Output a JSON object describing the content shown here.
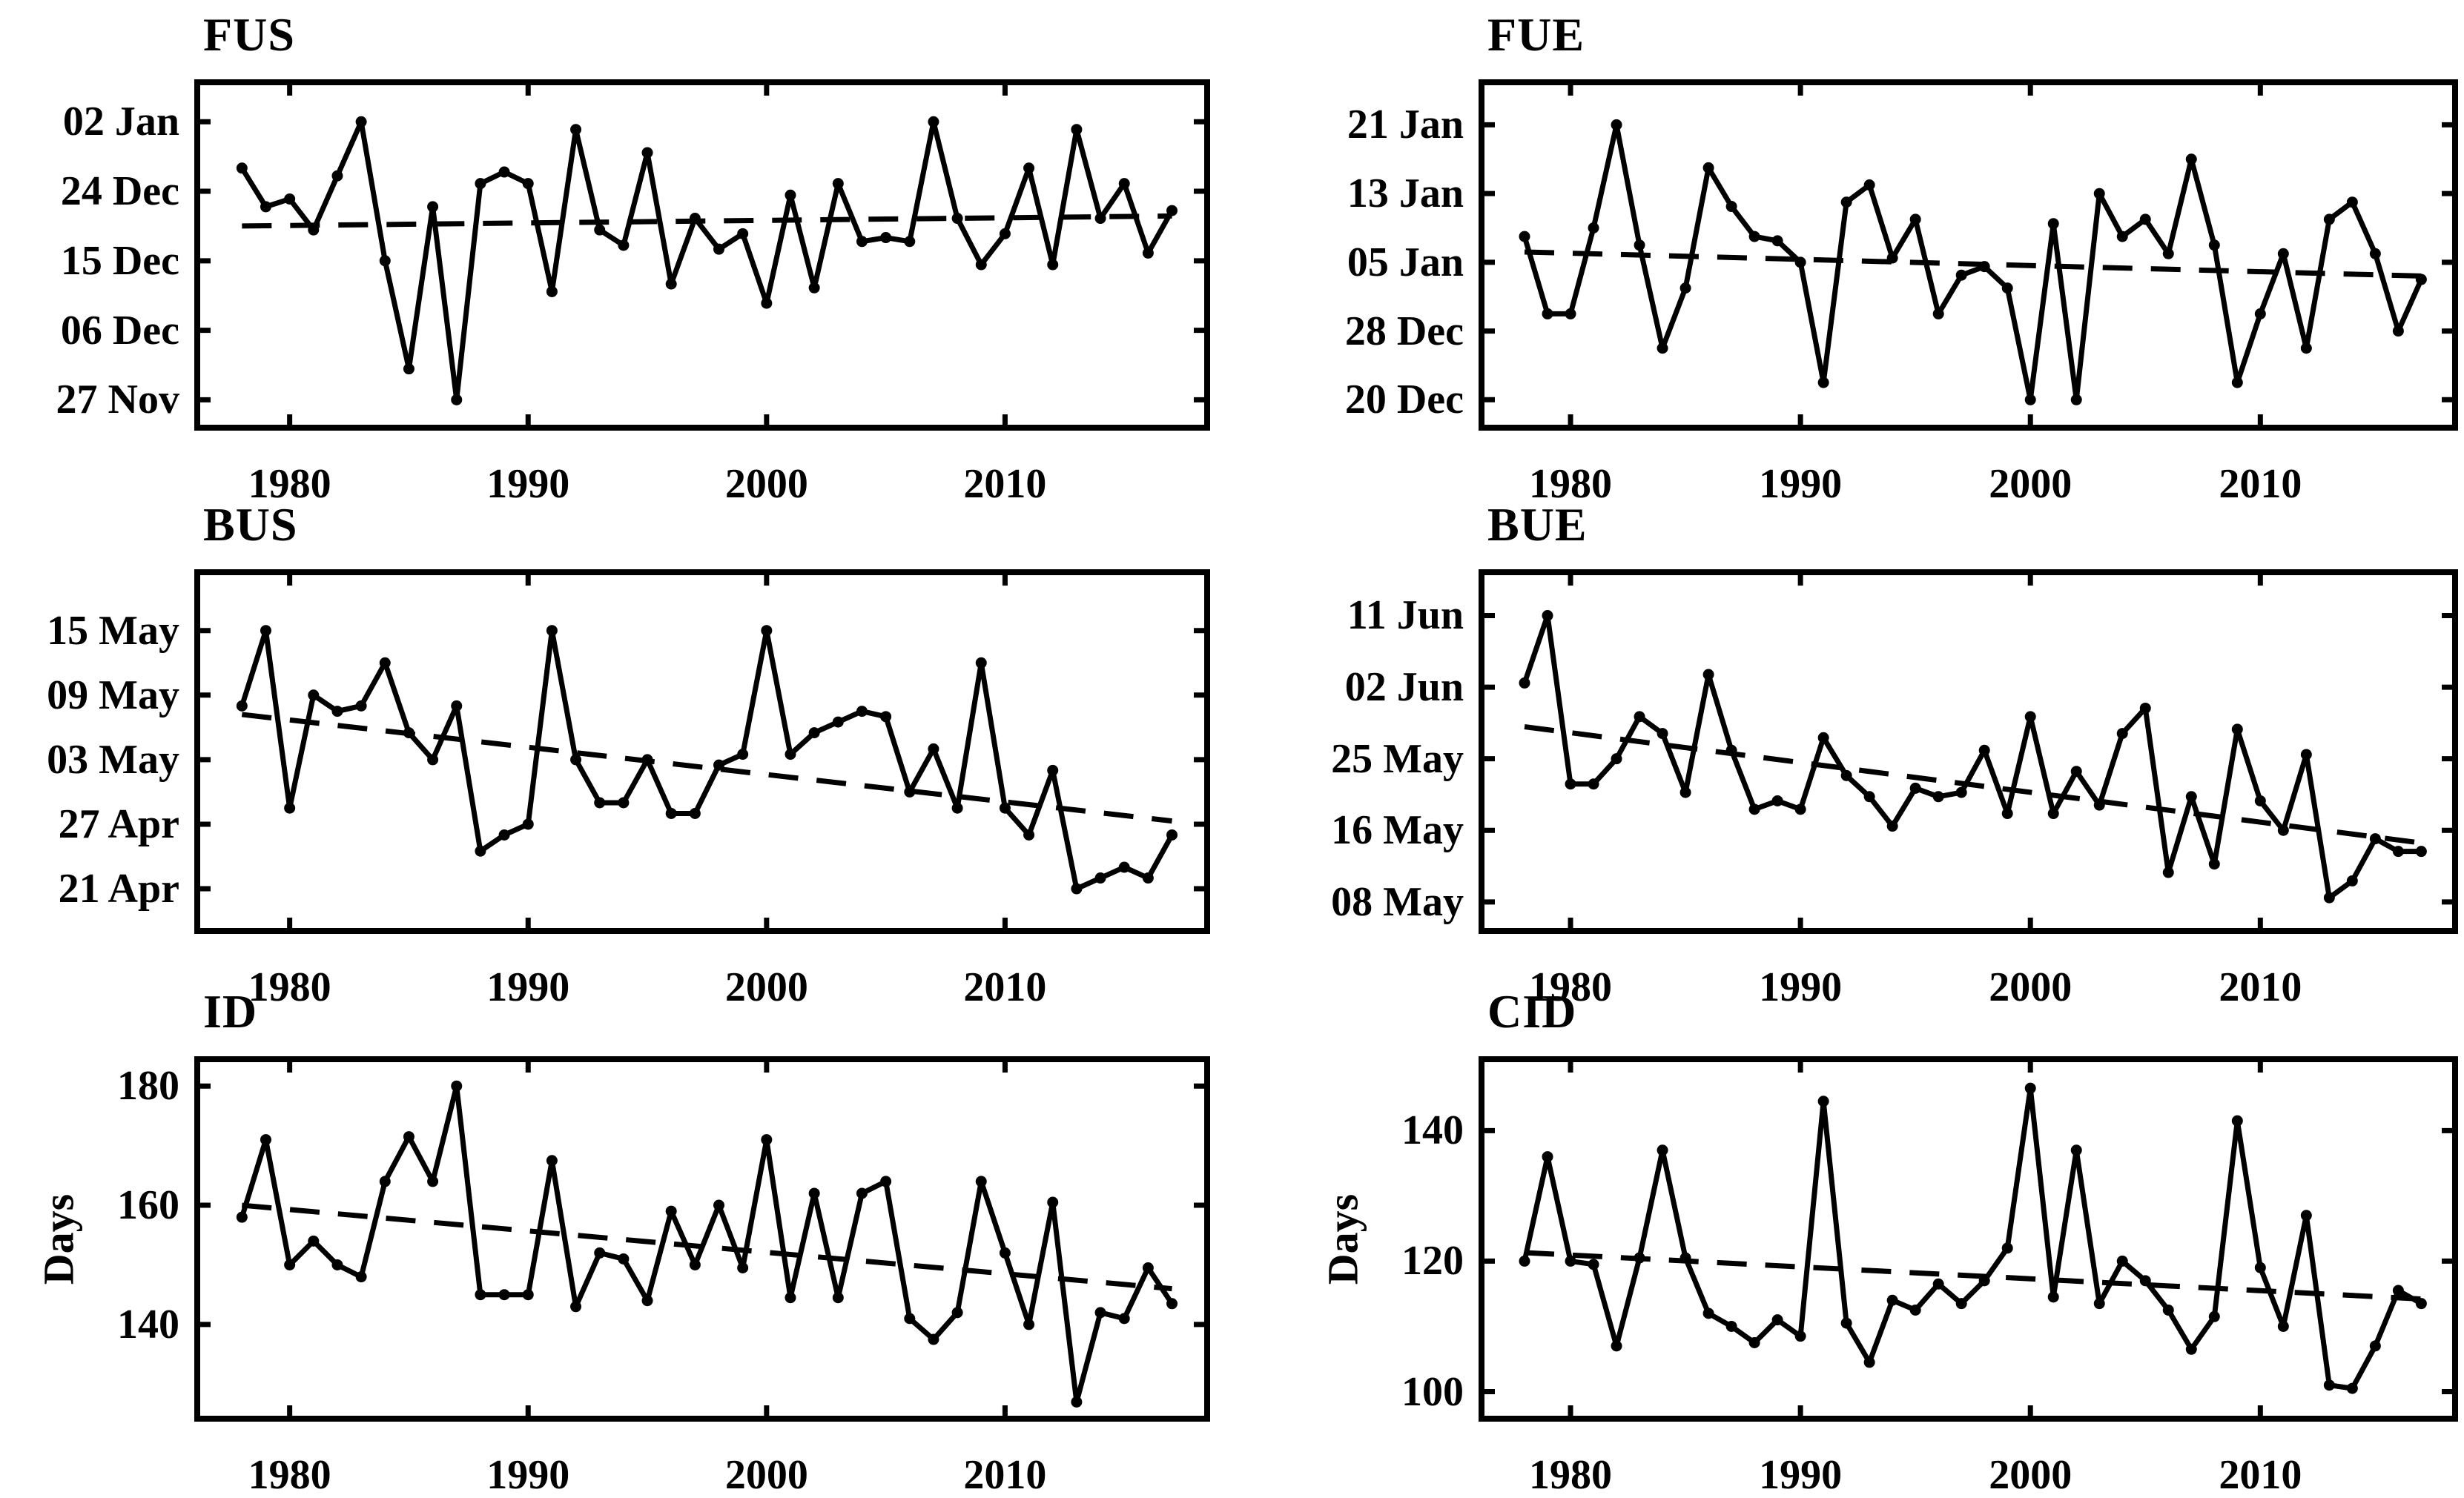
{
  "figure": {
    "background": "#ffffff",
    "line_color": "#000000",
    "years": [
      1978,
      1979,
      1980,
      1981,
      1982,
      1983,
      1984,
      1985,
      1986,
      1987,
      1988,
      1989,
      1990,
      1991,
      1992,
      1993,
      1994,
      1995,
      1996,
      1997,
      1998,
      1999,
      2000,
      2001,
      2002,
      2003,
      2004,
      2005,
      2006,
      2007,
      2008,
      2009,
      2010,
      2011,
      2012,
      2013,
      2014,
      2015,
      2016,
      2017
    ],
    "xticks": [
      1980,
      1990,
      2000,
      2010
    ],
    "xtick_labels": [
      "1980",
      "1990",
      "2000",
      "2010"
    ],
    "xlim": [
      1976,
      2018.6
    ]
  },
  "chart_data": [
    {
      "type": "line",
      "title": "FUS",
      "row": 0,
      "col": 0,
      "ylabel": "",
      "y_unit": "days after 27 Nov (date of year)",
      "ytick_labels": [
        "02 Jan",
        "24 Dec",
        "15 Dec",
        "06 Dec",
        "27 Nov"
      ],
      "ytick_values": [
        36,
        27,
        18,
        9,
        0
      ],
      "ylim": [
        -4.0,
        41.5
      ],
      "grid": false,
      "legend": null,
      "y": [
        30,
        25,
        26,
        22,
        29,
        36,
        18,
        4,
        25,
        0,
        28,
        29.5,
        28,
        14,
        35,
        22,
        20,
        32,
        15,
        23.5,
        19.5,
        21.5,
        12.5,
        26.5,
        14.5,
        28,
        20.5,
        21,
        20.5,
        36,
        23.5,
        17.5,
        21.5,
        30,
        17.5,
        35,
        23.5,
        28,
        19,
        24.5
      ],
      "trend": {
        "x": [
          1978,
          2017
        ],
        "y": [
          22.5,
          23.8
        ],
        "style": "dashed"
      }
    },
    {
      "type": "line",
      "title": "FUE",
      "row": 0,
      "col": 1,
      "ylabel": "",
      "y_unit": "days after 20 Dec (date of year)",
      "ytick_labels": [
        "21 Jan",
        "13 Jan",
        "05 Jan",
        "28 Dec",
        "20 Dec"
      ],
      "ytick_values": [
        32,
        24,
        16,
        8,
        0
      ],
      "ylim": [
        -3.6,
        37.3
      ],
      "grid": false,
      "legend": null,
      "y": [
        19,
        10,
        10,
        20,
        32,
        18,
        6,
        13,
        27,
        22.5,
        19,
        18.5,
        16,
        2,
        23,
        25,
        16.5,
        21,
        10,
        14.5,
        15.5,
        13,
        0,
        20.5,
        0,
        24,
        19,
        21,
        17,
        28,
        18,
        2,
        10,
        17,
        6,
        21,
        23,
        17,
        8,
        14
      ],
      "trend": {
        "x": [
          1978,
          2017
        ],
        "y": [
          17.2,
          14.4
        ],
        "style": "dashed"
      }
    },
    {
      "type": "line",
      "title": "BUS",
      "row": 1,
      "col": 0,
      "ylabel": "",
      "y_unit": "days after 21 Apr (date of year)",
      "ytick_labels": [
        "15 May",
        "09 May",
        "03 May",
        "27 Apr",
        "21 Apr"
      ],
      "ytick_values": [
        24,
        18,
        12,
        6,
        0
      ],
      "ylim": [
        -4.2,
        29.7
      ],
      "grid": false,
      "legend": null,
      "y": [
        17,
        24,
        7.5,
        18,
        16.5,
        17,
        21,
        14.5,
        12,
        17,
        3.5,
        5,
        6,
        24,
        12,
        8,
        8,
        12,
        7,
        7,
        11.5,
        12.5,
        24,
        12.5,
        14.5,
        15.5,
        16.5,
        16,
        9,
        13,
        7.5,
        21,
        7.5,
        5,
        11,
        0,
        1,
        2,
        1,
        5
      ],
      "trend": {
        "x": [
          1978,
          2017
        ],
        "y": [
          16.2,
          6.3
        ],
        "style": "dashed"
      }
    },
    {
      "type": "line",
      "title": "BUE",
      "row": 1,
      "col": 1,
      "ylabel": "",
      "y_unit": "days after 08 May (date of year)",
      "ytick_labels": [
        "11 Jun",
        "02 Jun",
        "25 May",
        "16 May",
        "08 May"
      ],
      "ytick_values": [
        34,
        25.5,
        17,
        8.5,
        0
      ],
      "ylim": [
        -3.8,
        39.5
      ],
      "grid": false,
      "legend": null,
      "y": [
        26,
        34,
        14,
        14,
        17,
        22,
        20,
        13,
        27,
        18,
        11,
        12,
        11,
        19.5,
        15,
        12.5,
        9,
        13.5,
        12.5,
        13,
        18,
        10.5,
        22,
        10.5,
        15.5,
        11.5,
        20,
        23,
        3.5,
        12.5,
        4.5,
        20.5,
        12,
        8.5,
        17.5,
        0.5,
        2.5,
        7.5,
        6,
        6
      ],
      "trend": {
        "x": [
          1978,
          2017
        ],
        "y": [
          20.8,
          7.0
        ],
        "style": "dashed"
      }
    },
    {
      "type": "line",
      "title": "ID",
      "row": 2,
      "col": 0,
      "ylabel": "Days",
      "y_unit": "days",
      "ytick_labels": [
        "180",
        "160",
        "140"
      ],
      "ytick_values": [
        180,
        160,
        140
      ],
      "ylim": [
        123.7,
        185.0
      ],
      "grid": false,
      "legend": null,
      "y": [
        158,
        171,
        150,
        154,
        150,
        148,
        164,
        171.5,
        164,
        180,
        145,
        145,
        145,
        167.5,
        143,
        152,
        151,
        144,
        159,
        150,
        160,
        149.5,
        171,
        144.5,
        162,
        144.5,
        162,
        164,
        141,
        137.5,
        142,
        164,
        152,
        140,
        160.5,
        127,
        142,
        141,
        149.5,
        143.5
      ],
      "trend": {
        "x": [
          1978,
          2017
        ],
        "y": [
          160,
          146
        ],
        "style": "dashed"
      }
    },
    {
      "type": "line",
      "title": "CID",
      "row": 2,
      "col": 1,
      "ylabel": "Days",
      "y_unit": "days",
      "ytick_labels": [
        "140",
        "120",
        "100"
      ],
      "ytick_values": [
        140,
        120,
        100
      ],
      "ylim": [
        95.4,
        151.4
      ],
      "grid": false,
      "legend": null,
      "y": [
        120,
        136,
        120,
        119.5,
        107,
        120.5,
        137,
        120.5,
        112,
        110,
        107.5,
        111,
        108.5,
        144.5,
        110.5,
        104.5,
        114,
        112.5,
        116.5,
        113.5,
        117,
        122,
        146.5,
        114.5,
        137,
        113.5,
        120,
        117,
        112.5,
        106.5,
        111.5,
        141.5,
        119,
        110,
        127,
        101,
        100.5,
        107,
        115.5,
        113.5
      ],
      "trend": {
        "x": [
          1978,
          2017
        ],
        "y": [
          121.3,
          114.2
        ],
        "style": "dashed"
      }
    }
  ]
}
